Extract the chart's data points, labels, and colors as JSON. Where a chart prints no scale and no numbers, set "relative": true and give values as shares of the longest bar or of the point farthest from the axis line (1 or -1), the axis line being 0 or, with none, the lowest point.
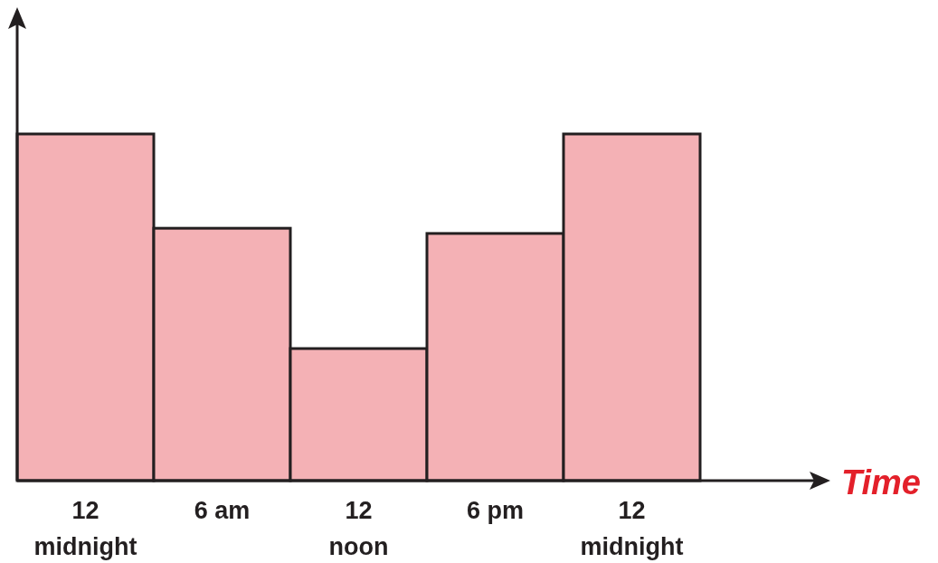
{
  "chart_data": {
    "type": "bar",
    "relative": true,
    "xlabel": "Time",
    "categories": [
      "12\nmidnight",
      "6 am",
      "12\nnoon",
      "6 pm",
      "12\nmidnight"
    ],
    "values": [
      1,
      0.728,
      0.381,
      0.713,
      1
    ],
    "color": "#f4b1b5"
  }
}
